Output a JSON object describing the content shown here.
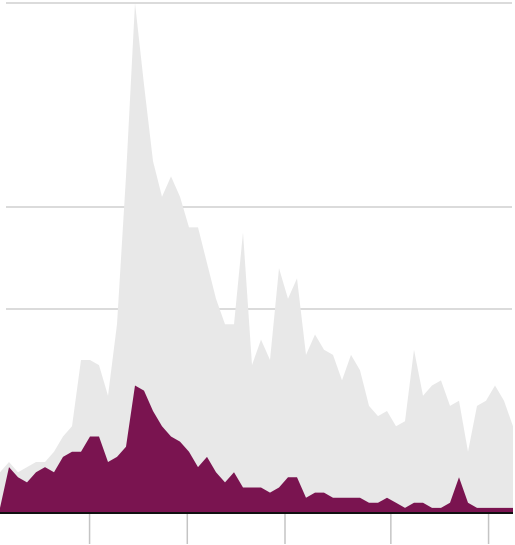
{
  "chart_data": {
    "type": "area",
    "title": "",
    "xlabel": "",
    "ylabel": "",
    "grid": true,
    "legend": "none",
    "x_range": [
      0,
      63
    ],
    "y_range": [
      0,
      100
    ],
    "gridlines": [
      40,
      60,
      100
    ],
    "x_ticks": [
      11,
      23,
      35,
      48,
      60
    ],
    "series": [
      {
        "fill": "#e8e8e8",
        "values": [
          8,
          10,
          8,
          9,
          10,
          10,
          12,
          15,
          17,
          30,
          30,
          29,
          23,
          37,
          66,
          100,
          84,
          69,
          62,
          66,
          62,
          56,
          56,
          49,
          42,
          37,
          37,
          55,
          29,
          34,
          30,
          48,
          42,
          46,
          31,
          35,
          32,
          31,
          26,
          31,
          28,
          21,
          19,
          20,
          17,
          18,
          32,
          23,
          25,
          26,
          21,
          22,
          12,
          21,
          22,
          25,
          22,
          17
        ]
      },
      {
        "fill": "#7a1450",
        "values": [
          1,
          9,
          7,
          6,
          8,
          9,
          8,
          11,
          12,
          12,
          15,
          15,
          10,
          11,
          13,
          25,
          24,
          20,
          17,
          15,
          14,
          12,
          9,
          11,
          8,
          6,
          8,
          5,
          5,
          5,
          4,
          5,
          7,
          7,
          3,
          4,
          4,
          3,
          3,
          3,
          3,
          2,
          2,
          3,
          2,
          1,
          2,
          2,
          1,
          1,
          2,
          7,
          2,
          1,
          1,
          1,
          1,
          1
        ]
      }
    ]
  }
}
